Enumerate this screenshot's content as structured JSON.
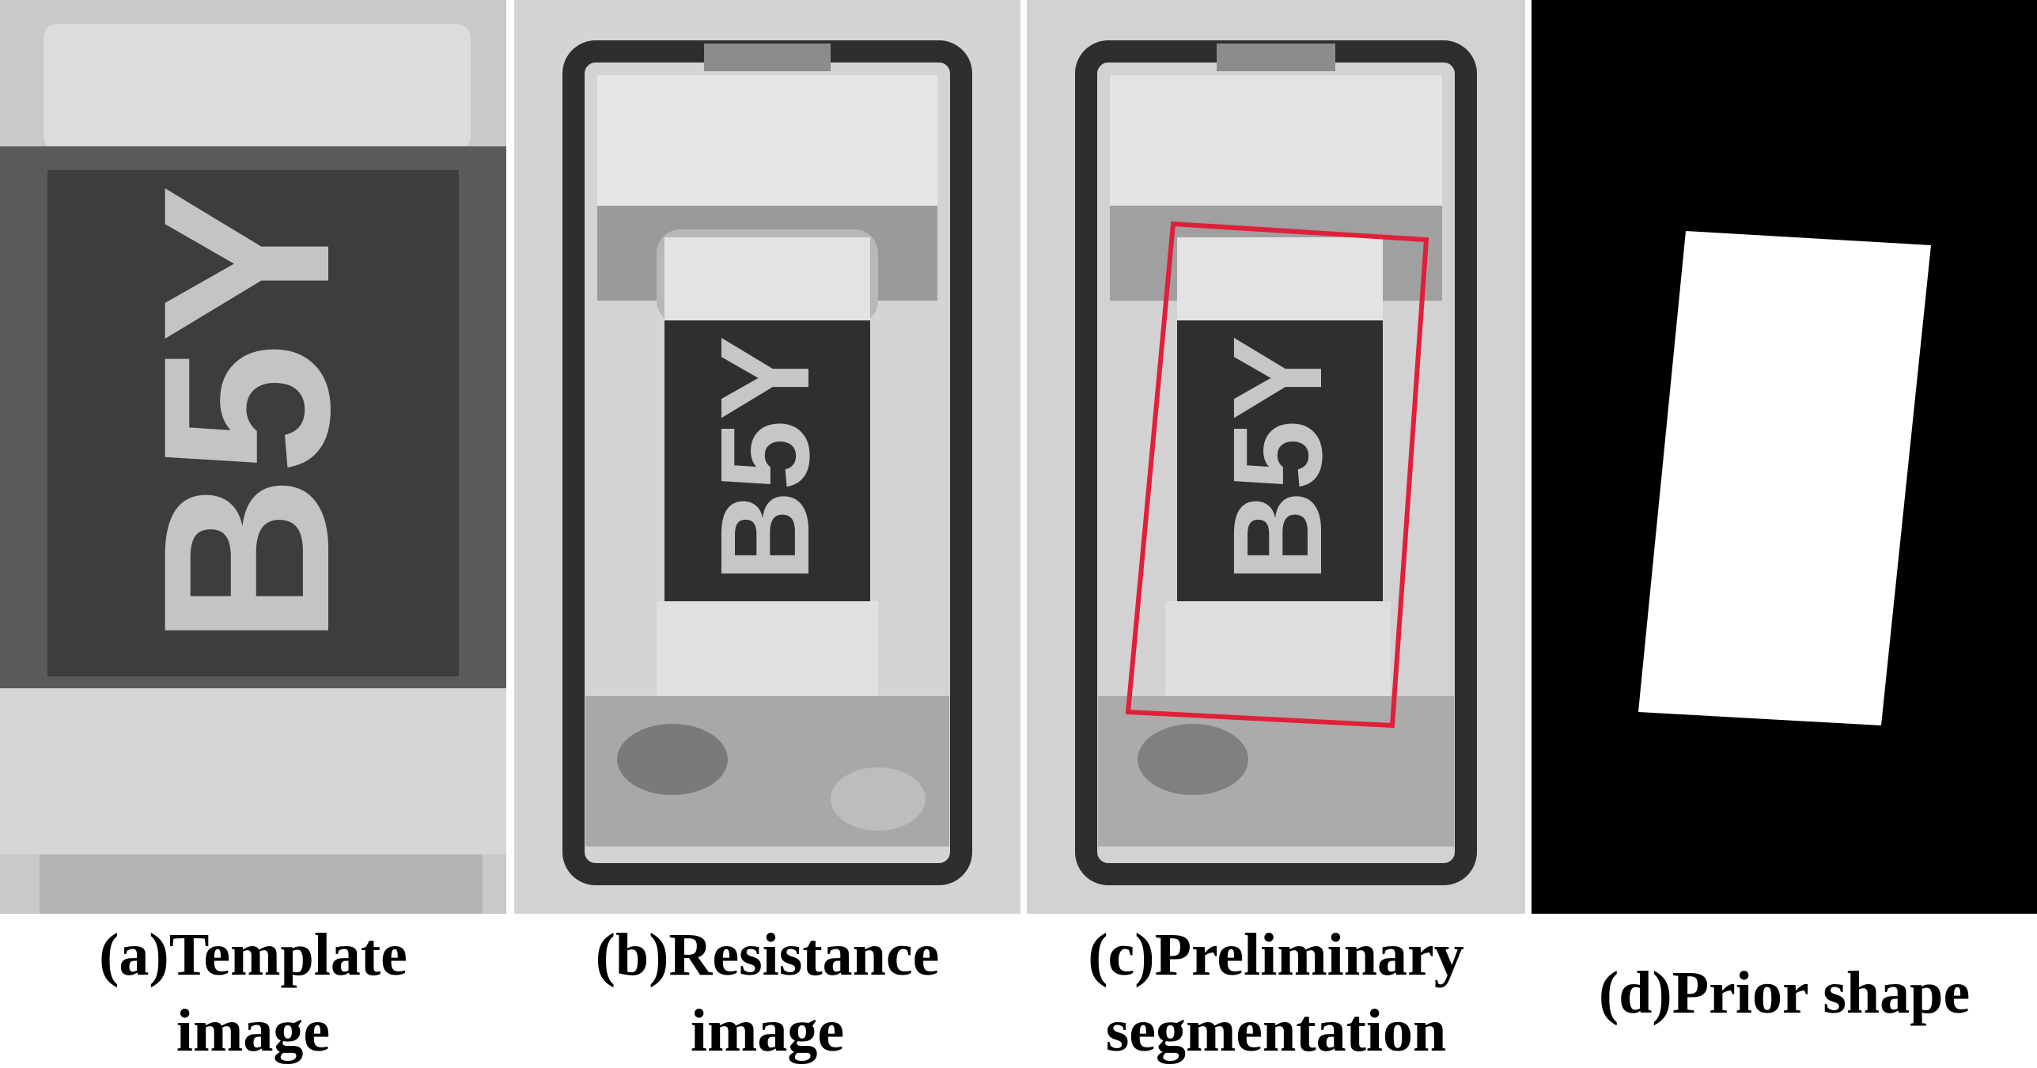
{
  "figure": {
    "panels": [
      {
        "id": "a",
        "caption_line1": "(a)Template",
        "caption_line2": "image",
        "marking": "B5Y"
      },
      {
        "id": "b",
        "caption_line1": "(b)Resistance",
        "caption_line2": "image",
        "marking": "B5Y"
      },
      {
        "id": "c",
        "caption_line1": "(c)Preliminary",
        "caption_line2": "segmentation",
        "marking": "B5Y"
      },
      {
        "id": "d",
        "caption_line1": "(d)Prior shape",
        "caption_line2": ""
      }
    ],
    "colors": {
      "background": "#ffffff",
      "segmentation_box": "#e0203a",
      "mask_background": "#000000",
      "mask_shape": "#ffffff"
    }
  }
}
